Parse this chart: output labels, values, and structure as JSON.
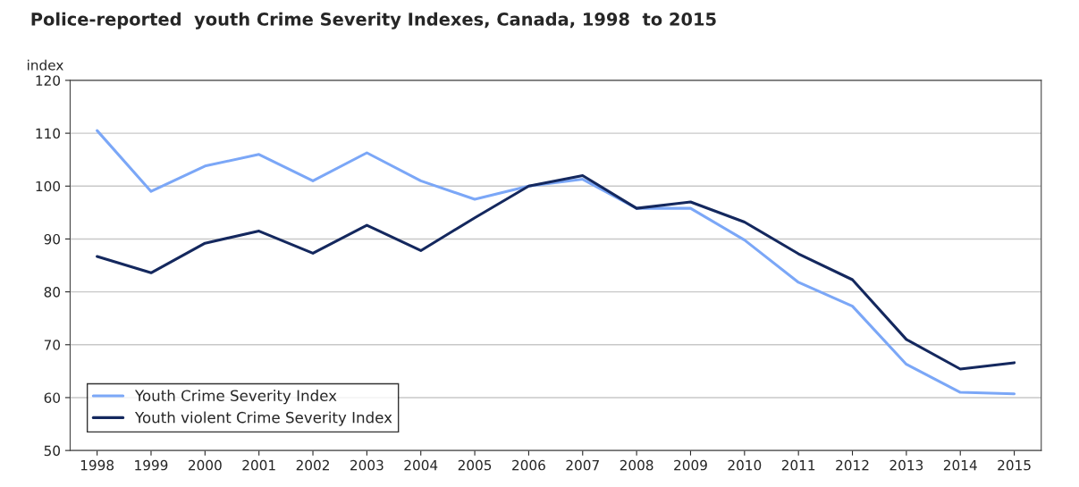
{
  "chart_data": {
    "type": "line",
    "title": "Police-reported  youth Crime Severity Indexes, Canada, 1998  to 2015",
    "ylabel": "index",
    "categories": [
      "1998",
      "1999",
      "2000",
      "2001",
      "2002",
      "2003",
      "2004",
      "2005",
      "2006",
      "2007",
      "2008",
      "2009",
      "2010",
      "2011",
      "2012",
      "2013",
      "2014",
      "2015"
    ],
    "series": [
      {
        "name": "Youth Crime Severity Index",
        "color": "#7ba7f7",
        "values": [
          110.5,
          99,
          103.8,
          106,
          101,
          106.3,
          101,
          97.5,
          100,
          101.3,
          95.8,
          95.8,
          89.8,
          81.8,
          77.3,
          66.3,
          61,
          60.7
        ]
      },
      {
        "name": "Youth violent Crime Severity Index",
        "color": "#14285e",
        "values": [
          86.7,
          83.6,
          89.2,
          91.5,
          87.3,
          92.6,
          87.8,
          94,
          100,
          102,
          95.8,
          97,
          93.2,
          87.2,
          82.3,
          71,
          65.4,
          66.6
        ]
      }
    ],
    "ylim": [
      50,
      120
    ],
    "yticks": [
      50,
      60,
      70,
      80,
      90,
      100,
      110,
      120
    ],
    "grid": "y",
    "legend": "bottom left",
    "marker": "none",
    "line_style": "solid"
  }
}
